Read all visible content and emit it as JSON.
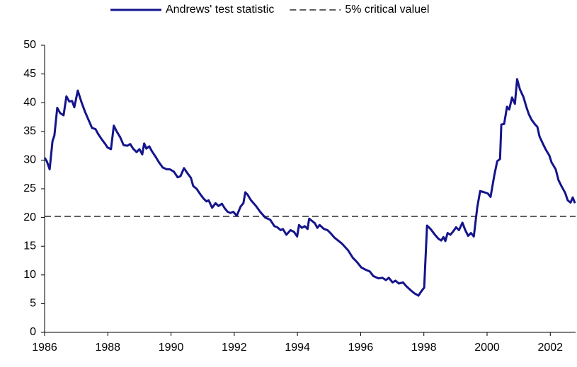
{
  "chart_data": {
    "type": "line",
    "series": [
      {
        "name": "Andrews' test statistic",
        "color": "#14148c",
        "x": [
          1986.0,
          1986.07,
          1986.16,
          1986.25,
          1986.31,
          1986.4,
          1986.49,
          1986.6,
          1986.69,
          1986.78,
          1986.87,
          1986.94,
          1987.05,
          1987.16,
          1987.28,
          1987.39,
          1987.5,
          1987.61,
          1987.7,
          1987.81,
          1987.92,
          1987.99,
          1988.1,
          1988.19,
          1988.28,
          1988.39,
          1988.5,
          1988.62,
          1988.71,
          1988.8,
          1988.91,
          1989.0,
          1989.09,
          1989.15,
          1989.22,
          1989.31,
          1989.4,
          1989.51,
          1989.62,
          1989.74,
          1989.87,
          1989.96,
          1990.09,
          1990.21,
          1990.3,
          1990.41,
          1990.52,
          1990.63,
          1990.7,
          1990.81,
          1990.92,
          1991.03,
          1991.12,
          1991.19,
          1991.3,
          1991.41,
          1991.5,
          1991.61,
          1991.7,
          1991.79,
          1991.88,
          1991.97,
          1992.08,
          1992.2,
          1992.29,
          1992.35,
          1992.42,
          1992.53,
          1992.69,
          1992.82,
          1992.98,
          1993.14,
          1993.27,
          1993.36,
          1993.47,
          1993.54,
          1993.65,
          1993.78,
          1993.89,
          1993.99,
          1994.05,
          1994.14,
          1994.23,
          1994.32,
          1994.37,
          1994.46,
          1994.55,
          1994.63,
          1994.7,
          1994.84,
          1994.95,
          1995.06,
          1995.17,
          1995.4,
          1995.6,
          1995.75,
          1995.89,
          1996.02,
          1996.16,
          1996.29,
          1996.4,
          1996.56,
          1996.69,
          1996.8,
          1996.89,
          1997.01,
          1997.1,
          1997.21,
          1997.34,
          1997.45,
          1997.59,
          1997.7,
          1997.83,
          1997.9,
          1998.01,
          1998.1,
          1998.21,
          1998.35,
          1998.46,
          1998.55,
          1998.62,
          1998.68,
          1998.75,
          1998.84,
          1998.93,
          1999.02,
          1999.11,
          1999.22,
          1999.31,
          1999.4,
          1999.49,
          1999.58,
          1999.69,
          1999.78,
          1999.91,
          2000.02,
          2000.11,
          2000.23,
          2000.32,
          2000.41,
          2000.45,
          2000.54,
          2000.63,
          2000.7,
          2000.79,
          2000.88,
          2000.95,
          2001.04,
          2001.15,
          2001.24,
          2001.32,
          2001.41,
          2001.52,
          2001.59,
          2001.66,
          2001.77,
          2001.86,
          2001.97,
          2002.04,
          2002.17,
          2002.26,
          2002.35,
          2002.47,
          2002.55,
          2002.64,
          2002.71,
          2002.78
        ],
        "values": [
          30.4,
          29.8,
          28.4,
          33.3,
          34.3,
          39.1,
          38.2,
          37.8,
          41.1,
          40.2,
          40.3,
          39.2,
          42.1,
          40.2,
          38.4,
          37.0,
          35.6,
          35.4,
          34.5,
          33.6,
          32.8,
          32.2,
          31.9,
          36.0,
          35.0,
          34.0,
          32.6,
          32.5,
          32.8,
          32.0,
          31.4,
          31.9,
          31.0,
          32.9,
          32.0,
          32.4,
          31.5,
          30.6,
          29.6,
          28.7,
          28.4,
          28.4,
          28.0,
          27.0,
          27.2,
          28.6,
          27.7,
          26.9,
          25.5,
          25.0,
          24.1,
          23.3,
          22.8,
          23.0,
          21.7,
          22.5,
          22.0,
          22.4,
          21.6,
          21.0,
          20.8,
          21.0,
          20.3,
          21.9,
          22.5,
          24.4,
          24.0,
          23.0,
          22.0,
          21.0,
          20.0,
          19.6,
          18.5,
          18.3,
          17.8,
          18.0,
          17.0,
          17.8,
          17.5,
          16.7,
          18.7,
          18.2,
          18.5,
          18.0,
          19.8,
          19.4,
          19.0,
          18.2,
          18.7,
          18.0,
          17.8,
          17.2,
          16.5,
          15.5,
          14.3,
          13.0,
          12.2,
          11.3,
          10.9,
          10.6,
          9.8,
          9.4,
          9.5,
          9.1,
          9.5,
          8.7,
          9.0,
          8.5,
          8.7,
          8.0,
          7.3,
          6.8,
          6.4,
          7.0,
          7.8,
          18.6,
          18.0,
          17.0,
          16.3,
          16.0,
          16.6,
          15.9,
          17.3,
          17.0,
          17.6,
          18.3,
          17.8,
          19.1,
          17.8,
          16.8,
          17.3,
          16.7,
          21.8,
          24.6,
          24.4,
          24.2,
          23.6,
          27.4,
          29.8,
          30.2,
          36.2,
          36.3,
          39.3,
          38.8,
          40.9,
          39.8,
          44.1,
          42.3,
          41.0,
          39.3,
          38.0,
          37.0,
          36.2,
          35.8,
          34.1,
          32.8,
          31.8,
          30.8,
          29.6,
          28.4,
          26.5,
          25.5,
          24.3,
          23.0,
          22.6,
          23.5,
          22.5
        ]
      }
    ],
    "reference_lines": [
      {
        "name": "5% critical valuel",
        "value": 20.2,
        "color": "#000000",
        "dashed": true
      }
    ],
    "xlim": [
      1986,
      2002.8
    ],
    "xticks": [
      1986,
      1988,
      1990,
      1992,
      1994,
      1996,
      1998,
      2000,
      2002
    ],
    "ylim": [
      0,
      50
    ],
    "yticks": [
      0,
      5,
      10,
      15,
      20,
      25,
      30,
      35,
      40,
      45,
      50
    ],
    "legend": "top"
  }
}
